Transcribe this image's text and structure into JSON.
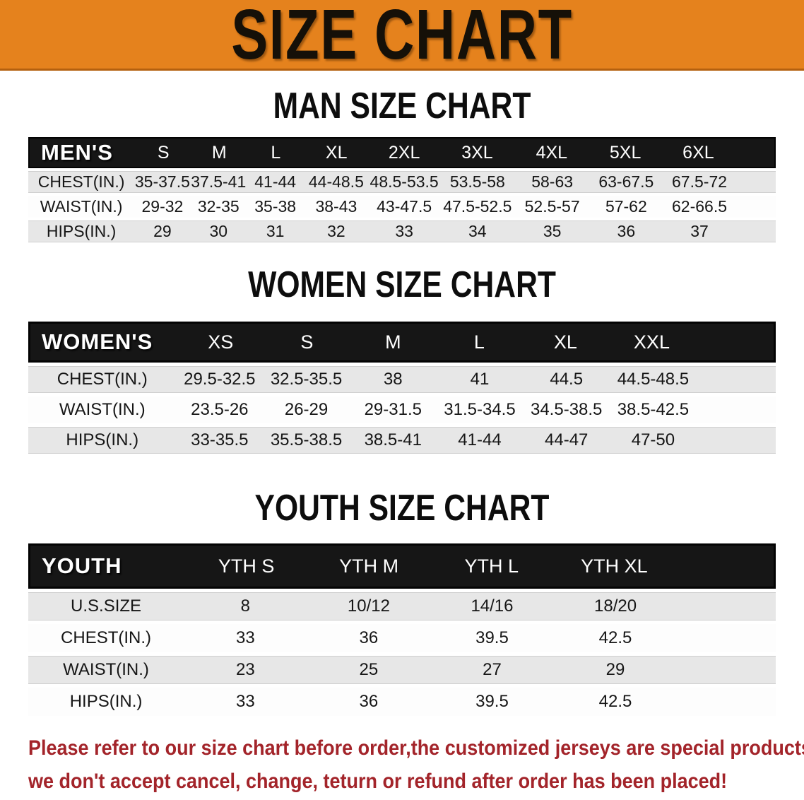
{
  "banner": {
    "title": "SIZE CHART",
    "bg_color": "#E5821D"
  },
  "sections": [
    {
      "heading": "MAN SIZE CHART",
      "table": {
        "header_label": "MEN'S",
        "columns": [
          "S",
          "M",
          "L",
          "XL",
          "2XL",
          "3XL",
          "4XL",
          "5XL",
          "6XL"
        ],
        "rows": [
          {
            "label": "CHEST(IN.)",
            "values": [
              "35-37.5",
              "37.5-41",
              "41-44",
              "44-48.5",
              "48.5-53.5",
              "53.5-58",
              "58-63",
              "63-67.5",
              "67.5-72"
            ]
          },
          {
            "label": "WAIST(IN.)",
            "values": [
              "29-32",
              "32-35",
              "35-38",
              "38-43",
              "43-47.5",
              "47.5-52.5",
              "52.5-57",
              "57-62",
              "62-66.5"
            ]
          },
          {
            "label": "HIPS(IN.)",
            "values": [
              "29",
              "30",
              "31",
              "32",
              "33",
              "34",
              "35",
              "36",
              "37"
            ]
          }
        ]
      }
    },
    {
      "heading": "WOMEN SIZE CHART",
      "table": {
        "header_label": "WOMEN'S",
        "columns": [
          "XS",
          "S",
          "M",
          "L",
          "XL",
          "XXL"
        ],
        "rows": [
          {
            "label": "CHEST(IN.)",
            "values": [
              "29.5-32.5",
              "32.5-35.5",
              "38",
              "41",
              "44.5",
              "44.5-48.5"
            ]
          },
          {
            "label": "WAIST(IN.)",
            "values": [
              "23.5-26",
              "26-29",
              "29-31.5",
              "31.5-34.5",
              "34.5-38.5",
              "38.5-42.5"
            ]
          },
          {
            "label": "HIPS(IN.)",
            "values": [
              "33-35.5",
              "35.5-38.5",
              "38.5-41",
              "41-44",
              "44-47",
              "47-50"
            ]
          }
        ]
      }
    },
    {
      "heading": "YOUTH SIZE CHART",
      "table": {
        "header_label": "YOUTH",
        "columns": [
          "YTH S",
          "YTH M",
          "YTH L",
          "YTH XL"
        ],
        "rows": [
          {
            "label": "U.S.SIZE",
            "values": [
              "8",
              "10/12",
              "14/16",
              "18/20"
            ]
          },
          {
            "label": "CHEST(IN.)",
            "values": [
              "33",
              "36",
              "39.5",
              "42.5"
            ]
          },
          {
            "label": "WAIST(IN.)",
            "values": [
              "23",
              "25",
              "27",
              "29"
            ]
          },
          {
            "label": "HIPS(IN.)",
            "values": [
              "33",
              "36",
              "39.5",
              "42.5"
            ]
          }
        ]
      }
    }
  ],
  "disclaimer": {
    "color": "#A3242A",
    "lines": [
      "Please refer to our size chart before order,the customized jerseys are special products,",
      "we don't accept cancel, change, teturn or refund after order has been placed!"
    ]
  }
}
